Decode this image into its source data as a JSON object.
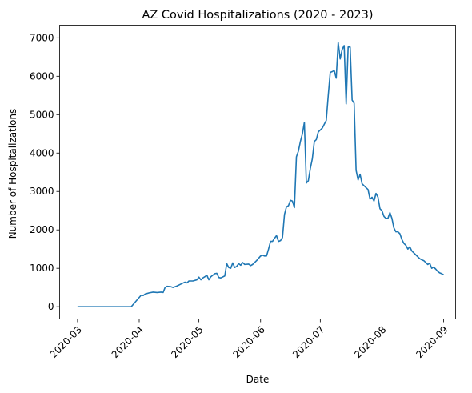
{
  "chart_data": {
    "type": "line",
    "title": "AZ Covid Hospitalizations (2020 - 2023)",
    "xlabel": "Date",
    "ylabel": "Number of Hospitalizations",
    "x_ticks": [
      "2020-03",
      "2020-04",
      "2020-05",
      "2020-06",
      "2020-07",
      "2020-08",
      "2020-09"
    ],
    "y_ticks": [
      0,
      1000,
      2000,
      3000,
      4000,
      5000,
      6000,
      7000
    ],
    "xlim": [
      "2020-02-21",
      "2020-09-07"
    ],
    "ylim": [
      -320,
      7330
    ],
    "grid": false,
    "legend": "none",
    "color": "#1f77b4",
    "series": [
      {
        "points": [
          [
            "2020-03-01",
            0
          ],
          [
            "2020-03-10",
            0
          ],
          [
            "2020-03-20",
            0
          ],
          [
            "2020-03-28",
            0
          ],
          [
            "2020-03-30",
            120
          ],
          [
            "2020-04-01",
            240
          ],
          [
            "2020-04-02",
            300
          ],
          [
            "2020-04-03",
            290
          ],
          [
            "2020-04-04",
            330
          ],
          [
            "2020-04-06",
            360
          ],
          [
            "2020-04-08",
            380
          ],
          [
            "2020-04-10",
            370
          ],
          [
            "2020-04-12",
            380
          ],
          [
            "2020-04-13",
            370
          ],
          [
            "2020-04-14",
            500
          ],
          [
            "2020-04-15",
            530
          ],
          [
            "2020-04-17",
            520
          ],
          [
            "2020-04-18",
            500
          ],
          [
            "2020-04-20",
            540
          ],
          [
            "2020-04-22",
            590
          ],
          [
            "2020-04-24",
            640
          ],
          [
            "2020-04-25",
            620
          ],
          [
            "2020-04-26",
            670
          ],
          [
            "2020-04-28",
            670
          ],
          [
            "2020-04-30",
            700
          ],
          [
            "2020-05-01",
            770
          ],
          [
            "2020-05-02",
            700
          ],
          [
            "2020-05-03",
            750
          ],
          [
            "2020-05-04",
            780
          ],
          [
            "2020-05-05",
            820
          ],
          [
            "2020-05-06",
            700
          ],
          [
            "2020-05-07",
            780
          ],
          [
            "2020-05-09",
            860
          ],
          [
            "2020-05-10",
            870
          ],
          [
            "2020-05-11",
            760
          ],
          [
            "2020-05-12",
            750
          ],
          [
            "2020-05-14",
            800
          ],
          [
            "2020-05-15",
            1120
          ],
          [
            "2020-05-16",
            1020
          ],
          [
            "2020-05-17",
            1000
          ],
          [
            "2020-05-18",
            1140
          ],
          [
            "2020-05-19",
            1020
          ],
          [
            "2020-05-20",
            1050
          ],
          [
            "2020-05-21",
            1120
          ],
          [
            "2020-05-22",
            1080
          ],
          [
            "2020-05-23",
            1150
          ],
          [
            "2020-05-24",
            1100
          ],
          [
            "2020-05-26",
            1110
          ],
          [
            "2020-05-27",
            1070
          ],
          [
            "2020-05-28",
            1100
          ],
          [
            "2020-05-30",
            1200
          ],
          [
            "2020-06-01",
            1320
          ],
          [
            "2020-06-02",
            1340
          ],
          [
            "2020-06-03",
            1320
          ],
          [
            "2020-06-04",
            1320
          ],
          [
            "2020-06-05",
            1500
          ],
          [
            "2020-06-06",
            1700
          ],
          [
            "2020-06-07",
            1700
          ],
          [
            "2020-06-08",
            1780
          ],
          [
            "2020-06-09",
            1850
          ],
          [
            "2020-06-10",
            1700
          ],
          [
            "2020-06-11",
            1720
          ],
          [
            "2020-06-12",
            1800
          ],
          [
            "2020-06-13",
            2400
          ],
          [
            "2020-06-14",
            2600
          ],
          [
            "2020-06-15",
            2630
          ],
          [
            "2020-06-16",
            2770
          ],
          [
            "2020-06-17",
            2750
          ],
          [
            "2020-06-18",
            2580
          ],
          [
            "2020-06-19",
            3900
          ],
          [
            "2020-06-20",
            4050
          ],
          [
            "2020-06-21",
            4300
          ],
          [
            "2020-06-22",
            4500
          ],
          [
            "2020-06-23",
            4800
          ],
          [
            "2020-06-24",
            3220
          ],
          [
            "2020-06-25",
            3280
          ],
          [
            "2020-06-26",
            3600
          ],
          [
            "2020-06-27",
            3850
          ],
          [
            "2020-06-28",
            4300
          ],
          [
            "2020-06-29",
            4350
          ],
          [
            "2020-06-30",
            4550
          ],
          [
            "2020-07-01",
            4600
          ],
          [
            "2020-07-02",
            4650
          ],
          [
            "2020-07-03",
            4750
          ],
          [
            "2020-07-04",
            4850
          ],
          [
            "2020-07-05",
            5500
          ],
          [
            "2020-07-06",
            6100
          ],
          [
            "2020-07-07",
            6120
          ],
          [
            "2020-07-08",
            6150
          ],
          [
            "2020-07-09",
            5950
          ],
          [
            "2020-07-10",
            6880
          ],
          [
            "2020-07-11",
            6450
          ],
          [
            "2020-07-12",
            6700
          ],
          [
            "2020-07-13",
            6800
          ],
          [
            "2020-07-14",
            5280
          ],
          [
            "2020-07-15",
            6760
          ],
          [
            "2020-07-16",
            6760
          ],
          [
            "2020-07-17",
            5380
          ],
          [
            "2020-07-18",
            5300
          ],
          [
            "2020-07-19",
            3550
          ],
          [
            "2020-07-20",
            3300
          ],
          [
            "2020-07-21",
            3450
          ],
          [
            "2020-07-22",
            3200
          ],
          [
            "2020-07-23",
            3150
          ],
          [
            "2020-07-24",
            3100
          ],
          [
            "2020-07-25",
            3050
          ],
          [
            "2020-07-26",
            2800
          ],
          [
            "2020-07-27",
            2850
          ],
          [
            "2020-07-28",
            2750
          ],
          [
            "2020-07-29",
            2950
          ],
          [
            "2020-07-30",
            2850
          ],
          [
            "2020-07-31",
            2550
          ],
          [
            "2020-08-01",
            2500
          ],
          [
            "2020-08-02",
            2350
          ],
          [
            "2020-08-03",
            2300
          ],
          [
            "2020-08-04",
            2300
          ],
          [
            "2020-08-05",
            2450
          ],
          [
            "2020-08-06",
            2300
          ],
          [
            "2020-08-07",
            2050
          ],
          [
            "2020-08-08",
            1950
          ],
          [
            "2020-08-09",
            1950
          ],
          [
            "2020-08-10",
            1900
          ],
          [
            "2020-08-11",
            1750
          ],
          [
            "2020-08-12",
            1650
          ],
          [
            "2020-08-13",
            1600
          ],
          [
            "2020-08-14",
            1500
          ],
          [
            "2020-08-15",
            1560
          ],
          [
            "2020-08-16",
            1450
          ],
          [
            "2020-08-17",
            1400
          ],
          [
            "2020-08-18",
            1350
          ],
          [
            "2020-08-19",
            1300
          ],
          [
            "2020-08-20",
            1250
          ],
          [
            "2020-08-21",
            1220
          ],
          [
            "2020-08-22",
            1200
          ],
          [
            "2020-08-23",
            1150
          ],
          [
            "2020-08-24",
            1100
          ],
          [
            "2020-08-25",
            1130
          ],
          [
            "2020-08-26",
            1000
          ],
          [
            "2020-08-27",
            1030
          ],
          [
            "2020-08-28",
            980
          ],
          [
            "2020-08-29",
            920
          ],
          [
            "2020-08-30",
            880
          ],
          [
            "2020-08-31",
            860
          ],
          [
            "2020-09-01",
            830
          ]
        ]
      }
    ]
  }
}
